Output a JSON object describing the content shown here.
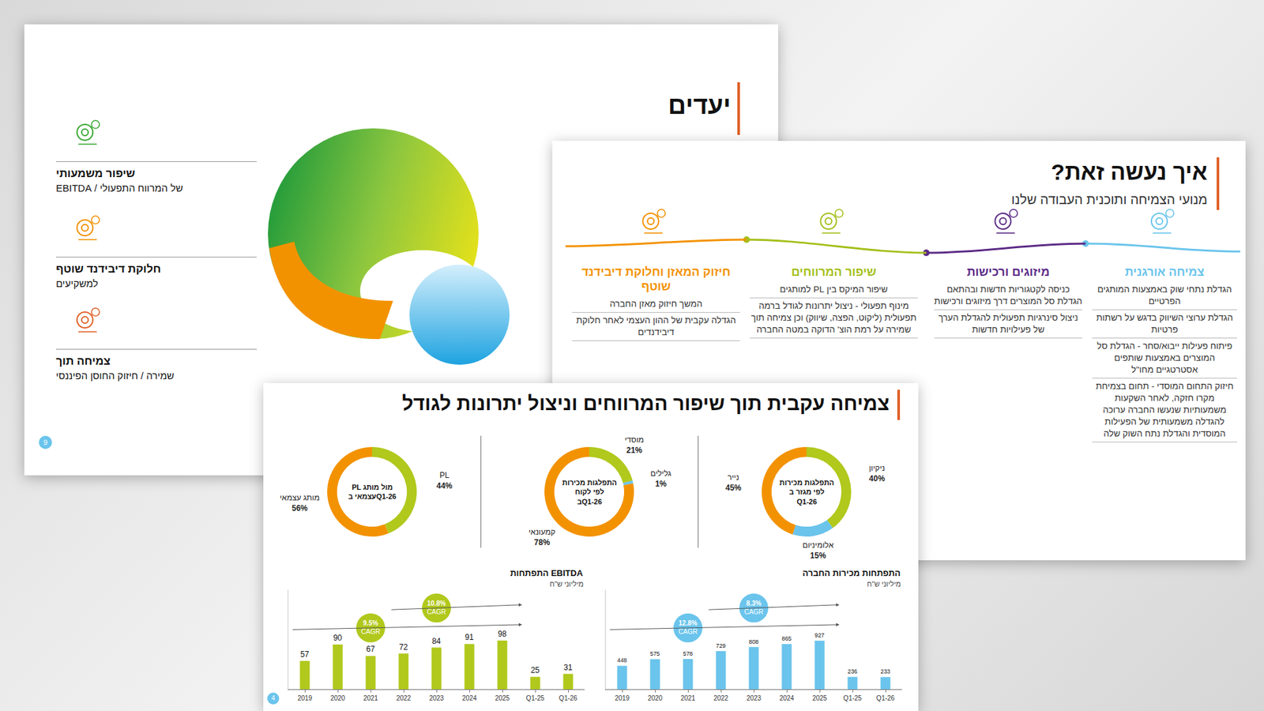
{
  "goals_slide": {
    "title": "יעדים",
    "page_number": 9,
    "goals": [
      {
        "lines": [
          "שיפור משמעותי",
          "של המרווח התפעולי / EBITDA"
        ],
        "color": "#3aa935"
      },
      {
        "lines": [
          "חלוקת דיבידנד שוטף",
          "למשקיעים"
        ],
        "color": "#f39200"
      },
      {
        "lines": [
          "צמיחה תוך",
          "שמירה / חיזוק החוסן הפיננסי"
        ],
        "color": "#e0622a"
      }
    ]
  },
  "how_slide": {
    "title": "איך נעשה זאת?",
    "subtitle": "מנועי הצמיחה ותוכנית העבודה שלנו",
    "columns": [
      {
        "title": "צמיחה אורגנית",
        "color": "#6ac4ec",
        "items": [
          "הגדלת נתחי שוק באמצעות המותגים הפרטיים",
          "הגדלת ערוצי השיווק בדגש על רשתות פרטיות",
          "פיתוח פעילות ייבוא/סחר - הגדלת סל המוצרים באמצעות שותפים אסטרטגיים מחו\"ל",
          "חיזוק התחום המוסדי - תחום בצמיחת מקרו חזקה, לאחר השקעות משמעותיות שנעשו החברה ערוכה להגדלה משמעותית של הפעילות המוסדית והגדלת נתח השוק שלה"
        ]
      },
      {
        "title": "מיזוגים ורכישות",
        "color": "#5b2a86",
        "items": [
          "כניסה לקטגוריות חדשות ובהתאם הגדלת סל המוצרים דרך מיזוגים ורכישות",
          "ניצול סינרגיות תפעולית להגדלת הערך של פעילויות חדשות"
        ]
      },
      {
        "title": "שיפור המרווחים",
        "color": "#a4bf1a",
        "items": [
          "שיפור המיקס בין PL למותגים",
          "מינוף תפעולי - ניצול יתרונות לגודל ברמה תפעולית (ליקוט, הפצה, שיווק) וכן צמיחה תוך שמירה על רמת הוצ' הדוקה במטה החברה"
        ]
      },
      {
        "title": "חיזוק המאזן וחלוקת דיבידנד שוטף",
        "color": "#f39200",
        "items": [
          "המשך חיזוק מאזן החברה",
          "הגדלה עקבית של ההון העצמי לאחר חלוקת דיבידנדים"
        ]
      }
    ]
  },
  "front_slide": {
    "title": "צמיחה עקבית תוך שיפור המרווחים וניצול יתרונות לגודל",
    "page_number": 4
  },
  "chart_data": [
    {
      "type": "donut",
      "title": "PL מול מותג עצמאי בQ1-26",
      "categories": [
        "PL",
        "מותג עצמאי"
      ],
      "values": [
        44,
        56
      ],
      "value_labels": [
        "44%",
        "56%"
      ],
      "colors": [
        "#b1c81c",
        "#f39200"
      ],
      "data_labels": true
    },
    {
      "type": "donut",
      "title": "התפלגות מכירות לפי לקוח בQ1-26",
      "categories": [
        "מוסדי",
        "גלילים",
        "קמעונאי"
      ],
      "values": [
        21,
        1,
        78
      ],
      "value_labels": [
        "21%",
        "1%",
        "78%"
      ],
      "colors": [
        "#b1c81c",
        "#6ac4ec",
        "#f39200"
      ],
      "data_labels": true
    },
    {
      "type": "donut",
      "title": "התפלגות מכירות לפי מגזר ב Q1-26",
      "categories": [
        "ניקיון",
        "אלומיניום",
        "נייר"
      ],
      "values": [
        40,
        15,
        45
      ],
      "value_labels": [
        "40%",
        "15%",
        "45%"
      ],
      "colors": [
        "#b1c81c",
        "#6ac4ec",
        "#f39200"
      ],
      "data_labels": true
    },
    {
      "type": "bar",
      "title": "התפתחות EBITDA",
      "subtitle": "מיליוני ש\"ח",
      "categories": [
        "2019",
        "2020",
        "2021",
        "2022",
        "2023",
        "2024",
        "2025",
        "Q1-25",
        "Q1-26"
      ],
      "values": [
        57,
        90,
        67,
        72,
        84,
        91,
        98,
        25,
        31
      ],
      "color": "#b1c81c",
      "ylim": [
        0,
        200
      ],
      "grid": false,
      "data_labels": true,
      "tick_labels": "x",
      "annotations": [
        {
          "text": "9.5%",
          "note": "CAGR",
          "from": "2019",
          "to": "2025"
        },
        {
          "text": "10.8%",
          "note": "CAGR",
          "from": "2022",
          "to": "2025"
        }
      ]
    },
    {
      "type": "bar",
      "title": "התפתחות מכירות החברה",
      "subtitle": "מיליוני ש\"ח",
      "categories": [
        "2019",
        "2020",
        "2021",
        "2022",
        "2023",
        "2024",
        "2025",
        "Q1-25",
        "Q1-26"
      ],
      "values": [
        448,
        575,
        578,
        729,
        808,
        865,
        927,
        236,
        233
      ],
      "color": "#6ac4ec",
      "ylim": [
        0,
        1900
      ],
      "grid": false,
      "data_labels": true,
      "tick_labels": "x",
      "annotations": [
        {
          "text": "12.8%",
          "note": "CAGR",
          "from": "2019",
          "to": "2025"
        },
        {
          "text": "8.3%",
          "note": "CAGR",
          "from": "2022",
          "to": "2025"
        }
      ]
    }
  ]
}
